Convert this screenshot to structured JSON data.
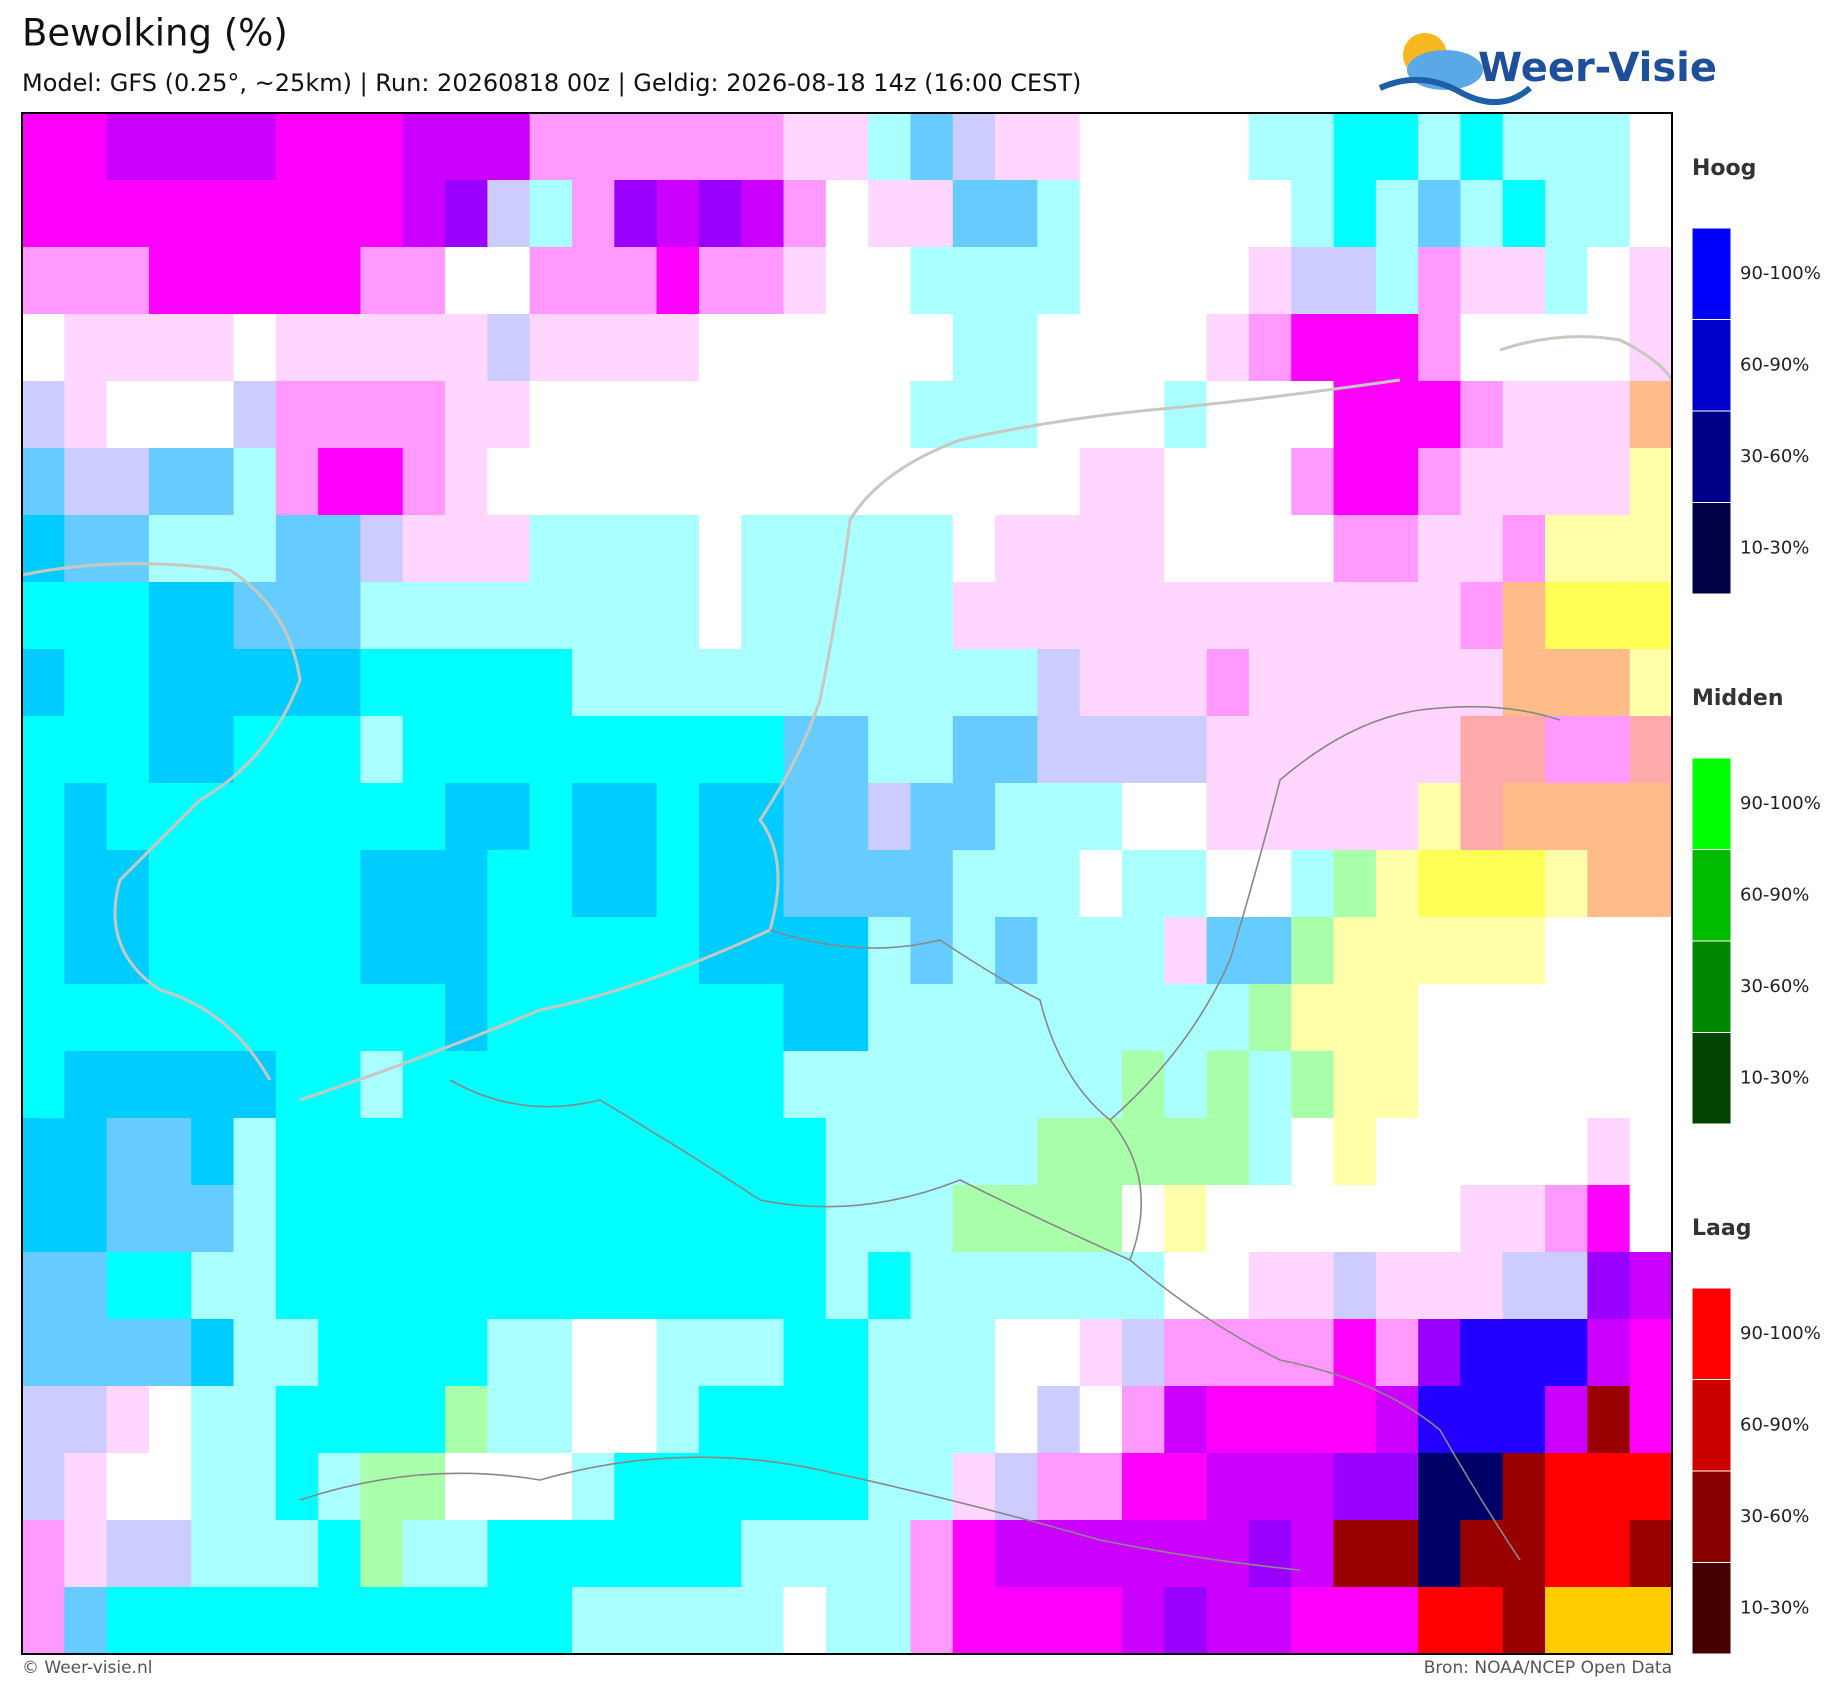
{
  "header": {
    "title": "Bewolking (%)",
    "subtitle": "Model: GFS (0.25°, ~25km)  |  Run: 20260818 00z  |  Geldig: 2026-08-18 14z (16:00 CEST)",
    "logo": "Weer-Visie"
  },
  "legend": [
    {
      "title": "Hoog",
      "items": [
        "90-100%",
        "60-90%",
        "30-60%",
        "10-30%"
      ]
    },
    {
      "title": "Midden",
      "items": [
        "90-100%",
        "60-90%",
        "30-60%",
        "10-30%"
      ]
    },
    {
      "title": "Laag",
      "items": [
        "90-100%",
        "60-90%",
        "30-60%",
        "10-30%"
      ]
    }
  ],
  "footer": {
    "left": "© Weer-visie.nl",
    "right": "Bron: NOAA/NCEP Open Data"
  }
}
